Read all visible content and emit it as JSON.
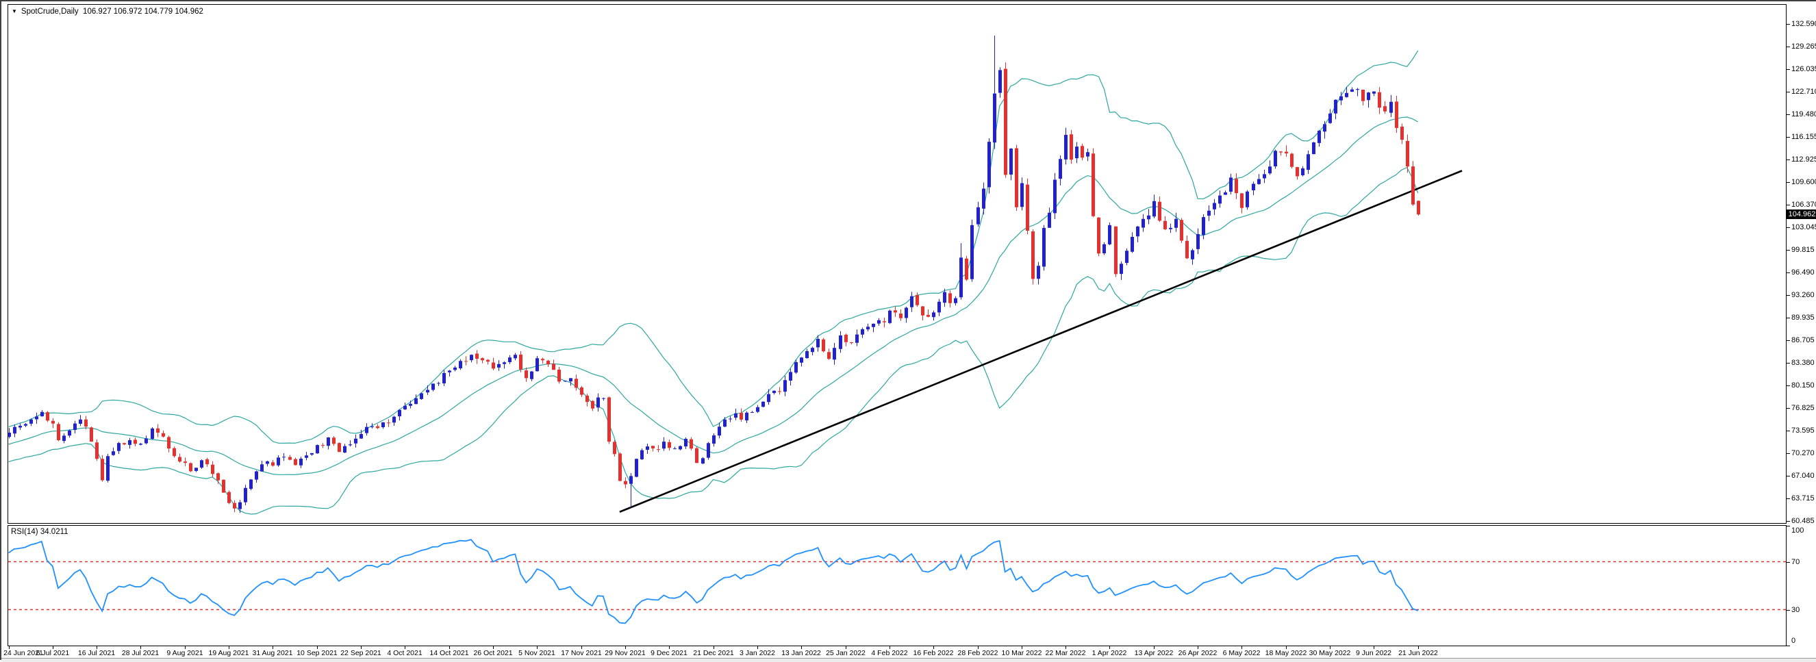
{
  "header": {
    "symbol_period": "SpotCrude,Daily",
    "ohlc_values": "106.927 106.972 104.779 104.962"
  },
  "price_axis": {
    "labels": [
      "132.590",
      "129.265",
      "126.035",
      "122.710",
      "119.480",
      "116.155",
      "112.925",
      "109.600",
      "106.370",
      "103.045",
      "99.815",
      "96.490",
      "93.260",
      "89.935",
      "86.705",
      "83.380",
      "80.150",
      "76.825",
      "73.595",
      "70.270",
      "67.040",
      "63.715",
      "60.485"
    ],
    "current_price": "104.962"
  },
  "rsi_pane": {
    "label": "RSI(14) 34.0211",
    "scale": [
      {
        "label": "100",
        "value": 100
      },
      {
        "label": "70",
        "value": 70
      },
      {
        "label": "30",
        "value": 30
      },
      {
        "label": "0",
        "value": 0
      }
    ],
    "level_values": [
      70,
      30
    ]
  },
  "time_axis": {
    "labels": [
      "24 Jun 2021",
      "6 Jul 2021",
      "16 Jul 2021",
      "28 Jul 2021",
      "9 Aug 2021",
      "19 Aug 2021",
      "31 Aug 2021",
      "10 Sep 2021",
      "22 Sep 2021",
      "4 Oct 2021",
      "14 Oct 2021",
      "26 Oct 2021",
      "5 Nov 2021",
      "17 Nov 2021",
      "29 Nov 2021",
      "9 Dec 2021",
      "21 Dec 2021",
      "3 Jan 2022",
      "13 Jan 2022",
      "25 Jan 2022",
      "4 Feb 2022",
      "16 Feb 2022",
      "28 Feb 2022",
      "10 Mar 2022",
      "22 Mar 2022",
      "1 Apr 2022",
      "13 Apr 2022",
      "26 Apr 2022",
      "6 May 2022",
      "18 May 2022",
      "30 May 2022",
      "9 Jun 2022",
      "21 Jun 2022"
    ]
  },
  "chart_data": {
    "type": "candlestick",
    "symbol": "SpotCrude",
    "timeframe": "Daily",
    "title": "SpotCrude,Daily",
    "current_bar": {
      "open": 106.927,
      "high": 106.972,
      "low": 104.779,
      "close": 104.962
    },
    "y_axis": {
      "min": 60.485,
      "max": 132.59,
      "tick_values": [
        132.59,
        129.265,
        126.035,
        122.71,
        119.48,
        116.155,
        112.925,
        109.6,
        106.37,
        103.045,
        99.815,
        96.49,
        93.26,
        89.935,
        86.705,
        83.38,
        80.15,
        76.825,
        73.595,
        70.27,
        67.04,
        63.715,
        60.485
      ]
    },
    "x_range": {
      "first_label": "24 Jun 2021",
      "last_label": "21 Jun 2022",
      "bars_visible": 257,
      "label_every_n_bars": 8
    },
    "indicators": {
      "bollinger": {
        "period": 20,
        "deviations": 2
      },
      "rsi": {
        "period": 14,
        "value": 34.0211,
        "overbought": 70,
        "oversold": 30
      }
    },
    "trendline": {
      "from": {
        "bar": 111,
        "price": 61.8
      },
      "to": {
        "bar": 264,
        "price": 111.3
      }
    },
    "close_keypoints": [
      [
        -20,
        69.0
      ],
      [
        -15,
        70.2
      ],
      [
        -10,
        71.6
      ],
      [
        -5,
        72.6
      ],
      [
        0,
        73.3
      ],
      [
        2,
        74.3
      ],
      [
        4,
        75.2
      ],
      [
        6,
        76.3
      ],
      [
        8,
        74.6
      ],
      [
        9,
        72.2
      ],
      [
        11,
        73.6
      ],
      [
        13,
        75.2
      ],
      [
        15,
        72.0
      ],
      [
        16,
        69.5
      ],
      [
        17,
        66.4
      ],
      [
        18,
        69.9
      ],
      [
        20,
        71.8
      ],
      [
        22,
        72.2
      ],
      [
        24,
        71.7
      ],
      [
        26,
        73.9
      ],
      [
        27,
        73.3
      ],
      [
        29,
        71.0
      ],
      [
        31,
        69.1
      ],
      [
        33,
        67.7
      ],
      [
        35,
        69.3
      ],
      [
        37,
        67.3
      ],
      [
        39,
        64.6
      ],
      [
        41,
        62.3
      ],
      [
        42,
        63.2
      ],
      [
        44,
        66.5
      ],
      [
        46,
        68.7
      ],
      [
        48,
        68.5
      ],
      [
        50,
        69.8
      ],
      [
        52,
        68.6
      ],
      [
        54,
        70.0
      ],
      [
        56,
        71.5
      ],
      [
        58,
        72.6
      ],
      [
        60,
        70.5
      ],
      [
        62,
        71.6
      ],
      [
        64,
        73.1
      ],
      [
        66,
        74.2
      ],
      [
        68,
        74.8
      ],
      [
        70,
        75.6
      ],
      [
        72,
        77.2
      ],
      [
        74,
        78.3
      ],
      [
        76,
        79.5
      ],
      [
        78,
        80.5
      ],
      [
        80,
        82.3
      ],
      [
        82,
        83.7
      ],
      [
        84,
        84.6
      ],
      [
        86,
        83.8
      ],
      [
        88,
        82.6
      ],
      [
        90,
        83.5
      ],
      [
        92,
        84.6
      ],
      [
        94,
        81.2
      ],
      [
        96,
        84.1
      ],
      [
        98,
        83.2
      ],
      [
        100,
        80.7
      ],
      [
        102,
        81.2
      ],
      [
        104,
        78.8
      ],
      [
        106,
        76.8
      ],
      [
        107,
        78.4
      ],
      [
        108,
        78.3
      ],
      [
        109,
        72.0
      ],
      [
        110,
        70.2
      ],
      [
        111,
        66.3
      ],
      [
        112,
        65.8
      ],
      [
        113,
        67.0
      ],
      [
        114,
        69.5
      ],
      [
        116,
        71.3
      ],
      [
        118,
        70.9
      ],
      [
        119,
        72.0
      ],
      [
        121,
        71.0
      ],
      [
        123,
        72.4
      ],
      [
        124,
        71.0
      ],
      [
        125,
        68.9
      ],
      [
        126,
        69.6
      ],
      [
        128,
        72.9
      ],
      [
        130,
        75.2
      ],
      [
        132,
        76.1
      ],
      [
        133,
        75.2
      ],
      [
        134,
        76.2
      ],
      [
        136,
        77.0
      ],
      [
        138,
        78.9
      ],
      [
        140,
        79.2
      ],
      [
        142,
        82.1
      ],
      [
        144,
        84.2
      ],
      [
        146,
        85.6
      ],
      [
        147,
        86.9
      ],
      [
        148,
        85.1
      ],
      [
        149,
        84.0
      ],
      [
        151,
        87.4
      ],
      [
        153,
        86.3
      ],
      [
        155,
        88.3
      ],
      [
        157,
        89.1
      ],
      [
        159,
        89.3
      ],
      [
        160,
        91.0
      ],
      [
        162,
        89.9
      ],
      [
        164,
        93.1
      ],
      [
        165,
        91.8
      ],
      [
        167,
        90.1
      ],
      [
        169,
        92.3
      ],
      [
        170,
        93.7
      ],
      [
        171,
        92.1
      ],
      [
        172,
        92.8
      ],
      [
        173,
        98.7
      ],
      [
        174,
        95.5
      ],
      [
        175,
        103.4
      ],
      [
        176,
        106.0
      ],
      [
        177,
        108.7
      ],
      [
        178,
        115.5
      ],
      [
        179,
        122.5
      ],
      [
        180,
        125.9
      ],
      [
        181,
        110.7
      ],
      [
        182,
        114.5
      ],
      [
        183,
        106.0
      ],
      [
        184,
        109.5
      ],
      [
        185,
        102.6
      ],
      [
        186,
        95.6
      ],
      [
        187,
        97.5
      ],
      [
        188,
        103.0
      ],
      [
        189,
        105.2
      ],
      [
        190,
        110.0
      ],
      [
        191,
        113.0
      ],
      [
        192,
        116.5
      ],
      [
        193,
        112.9
      ],
      [
        194,
        114.8
      ],
      [
        195,
        113.2
      ],
      [
        196,
        114.0
      ],
      [
        197,
        104.7
      ],
      [
        198,
        99.3
      ],
      [
        200,
        103.4
      ],
      [
        201,
        96.3
      ],
      [
        203,
        99.7
      ],
      [
        205,
        103.2
      ],
      [
        206,
        104.3
      ],
      [
        208,
        106.9
      ],
      [
        210,
        102.8
      ],
      [
        212,
        104.3
      ],
      [
        214,
        98.6
      ],
      [
        216,
        102.1
      ],
      [
        218,
        105.5
      ],
      [
        220,
        107.7
      ],
      [
        222,
        110.3
      ],
      [
        224,
        105.9
      ],
      [
        226,
        109.4
      ],
      [
        228,
        110.8
      ],
      [
        230,
        114.2
      ],
      [
        232,
        113.8
      ],
      [
        234,
        110.5
      ],
      [
        236,
        113.7
      ],
      [
        238,
        117.1
      ],
      [
        240,
        119.6
      ],
      [
        242,
        122.1
      ],
      [
        244,
        123.1
      ],
      [
        246,
        121.4
      ],
      [
        248,
        122.8
      ],
      [
        250,
        119.9
      ],
      [
        251,
        121.3
      ],
      [
        252,
        117.5
      ],
      [
        253,
        115.8
      ],
      [
        254,
        111.9
      ],
      [
        255,
        106.4
      ],
      [
        256,
        104.962
      ]
    ],
    "wick_annotations": [
      {
        "index": 41,
        "price": 61.8
      },
      {
        "index": 113,
        "price": 62.43
      },
      {
        "index": 173,
        "price": 100.8
      },
      {
        "index": 179,
        "price": 130.9
      },
      {
        "index": 186,
        "price": 94.8
      }
    ],
    "colors": {
      "bull": "#2222CD",
      "bear": "#E53030",
      "bollinger": "#2CA79F",
      "rsi_line": "#1E90FF",
      "rsi_levels": "#E03030",
      "trendline": "#000000",
      "badge_bg": "#000000",
      "badge_fg": "#FFFFFF",
      "background": "#FFFFFF"
    }
  }
}
